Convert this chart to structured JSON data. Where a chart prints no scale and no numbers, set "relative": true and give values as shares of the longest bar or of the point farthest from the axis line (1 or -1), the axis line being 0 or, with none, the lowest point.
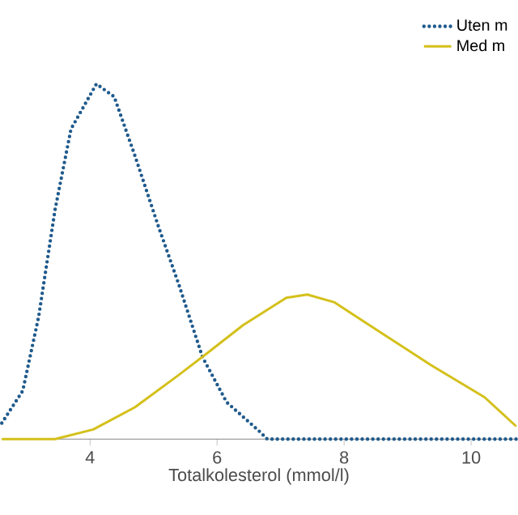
{
  "chart_data": {
    "type": "line",
    "relative": true,
    "xlabel": "Totalkolesterol (mmol/l)",
    "xlim": [
      2.61,
      10.71
    ],
    "xticks": [
      4,
      6,
      8,
      10
    ],
    "legend": "top right",
    "grid": false,
    "series": [
      {
        "name": "Uten m",
        "color": "#1f5a8c",
        "line_style": "dotted",
        "x": [
          2.61,
          2.94,
          3.19,
          3.45,
          3.7,
          4.1,
          4.38,
          4.71,
          5.07,
          5.4,
          5.77,
          6.15,
          6.66,
          6.79,
          10.71
        ],
        "values": [
          0.045,
          0.136,
          0.344,
          0.647,
          0.873,
          1.0,
          0.964,
          0.796,
          0.602,
          0.434,
          0.231,
          0.104,
          0.023,
          0,
          0
        ]
      },
      {
        "name": "Med m",
        "color": "#d4c01a",
        "line_style": "solid",
        "x": [
          2.61,
          3.45,
          4.05,
          4.71,
          5.4,
          5.83,
          6.41,
          7.09,
          7.42,
          7.85,
          8.51,
          9.37,
          10.21,
          10.71
        ],
        "values": [
          0,
          0,
          0.027,
          0.09,
          0.181,
          0.24,
          0.321,
          0.398,
          0.407,
          0.385,
          0.308,
          0.208,
          0.118,
          0.036
        ]
      }
    ]
  }
}
